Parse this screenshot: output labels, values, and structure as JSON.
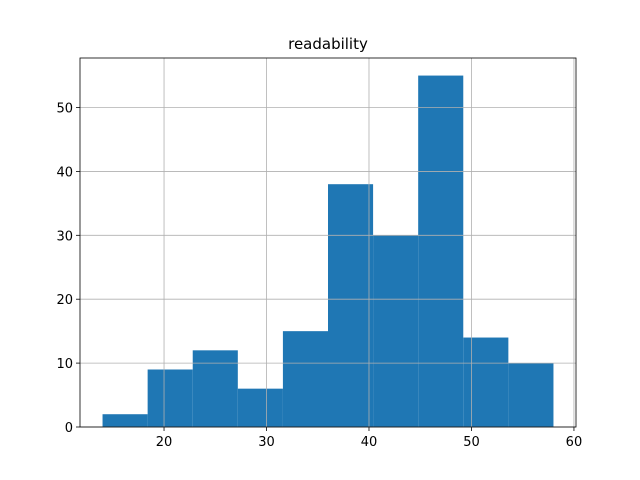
{
  "chart_data": {
    "type": "histogram",
    "title": "readability",
    "bins": [
      14,
      18.4,
      22.8,
      27.2,
      31.6,
      36,
      40.4,
      44.8,
      49.2,
      53.6,
      58
    ],
    "values": [
      2,
      9,
      12,
      6,
      15,
      38,
      30,
      55,
      14,
      10
    ],
    "color": "#1f77b4",
    "xlim": [
      11.8,
      60.2
    ],
    "xticks": [
      20,
      30,
      40,
      50,
      60
    ],
    "ylim": [
      0,
      57.75
    ],
    "yticks": [
      0,
      10,
      20,
      30,
      40,
      50
    ],
    "grid": true
  }
}
